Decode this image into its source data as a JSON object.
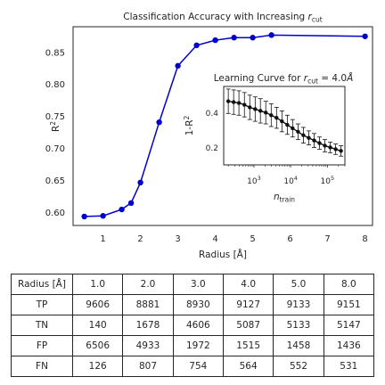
{
  "chart_data": [
    {
      "type": "line",
      "title": "Classification Accuracy with Increasing r_cut",
      "title_text": "Classification Accuracy with Increasing ",
      "title_symbol": "r",
      "title_subscript": "cut",
      "xlabel": "Radius [Å]",
      "ylabel": "R²",
      "ylabel_base": "R",
      "ylabel_sup": "2",
      "xlim": [
        0.2,
        8.2
      ],
      "ylim": [
        0.58,
        0.89
      ],
      "xticks": [
        1,
        2,
        3,
        4,
        5,
        6,
        7,
        8
      ],
      "yticks": [
        0.6,
        0.65,
        0.7,
        0.75,
        0.8,
        0.85
      ],
      "ytick_labels": [
        "0.60",
        "0.65",
        "0.70",
        "0.75",
        "0.80",
        "0.85"
      ],
      "grid": false,
      "color": "#0000cc",
      "series": [
        {
          "x": [
            0.5,
            1.0,
            1.5,
            1.75,
            2.0,
            2.5,
            3.0,
            3.5,
            4.0,
            4.5,
            5.0,
            5.5,
            8.0
          ],
          "y": [
            0.594,
            0.595,
            0.605,
            0.615,
            0.647,
            0.741,
            0.829,
            0.861,
            0.869,
            0.873,
            0.873,
            0.877,
            0.875
          ]
        }
      ]
    },
    {
      "type": "line",
      "title": "Learning Curve for r_cut = 4.0Å",
      "title_text": "Learning Curve for ",
      "title_symbol": "r",
      "title_subscript": "cut",
      "title_value": " = 4.0",
      "title_unit": "Å",
      "xlabel": "n_train",
      "xlabel_symbol": "n",
      "xlabel_subscript": "train",
      "ylabel": "1-R²",
      "ylabel_base": "1-R",
      "ylabel_sup": "2",
      "xscale": "log",
      "xlim": [
        150,
        300000
      ],
      "ylim": [
        0.1,
        0.55
      ],
      "xticks": [
        1000,
        10000,
        100000
      ],
      "xtick_bases": [
        "10",
        "10",
        "10"
      ],
      "xtick_exps": [
        "3",
        "4",
        "5"
      ],
      "yticks": [
        0.2,
        0.4
      ],
      "ytick_labels": [
        "0.2",
        "0.4"
      ],
      "color": "#111111",
      "series": [
        {
          "x": [
            200,
            280,
            390,
            550,
            770,
            1080,
            1500,
            2100,
            2950,
            4130,
            5780,
            8100,
            11300,
            15900,
            22200,
            31100,
            43600,
            61000,
            85500,
            120000,
            168000,
            235000
          ],
          "y": [
            0.465,
            0.46,
            0.455,
            0.445,
            0.43,
            0.42,
            0.41,
            0.4,
            0.385,
            0.37,
            0.35,
            0.33,
            0.31,
            0.29,
            0.27,
            0.255,
            0.24,
            0.225,
            0.21,
            0.2,
            0.19,
            0.18
          ],
          "err": [
            0.07,
            0.07,
            0.07,
            0.07,
            0.07,
            0.07,
            0.07,
            0.065,
            0.065,
            0.06,
            0.06,
            0.055,
            0.05,
            0.045,
            0.045,
            0.04,
            0.04,
            0.035,
            0.035,
            0.03,
            0.03,
            0.03
          ]
        }
      ]
    }
  ],
  "table": {
    "header": [
      "Radius [Å]",
      "1.0",
      "2.0",
      "3.0",
      "4.0",
      "5.0",
      "8.0"
    ],
    "rows": [
      {
        "label": "TP",
        "values": [
          "9606",
          "8881",
          "8930",
          "9127",
          "9133",
          "9151"
        ]
      },
      {
        "label": "TN",
        "values": [
          "140",
          "1678",
          "4606",
          "5087",
          "5133",
          "5147"
        ]
      },
      {
        "label": "FP",
        "values": [
          "6506",
          "4933",
          "1972",
          "1515",
          "1458",
          "1436"
        ]
      },
      {
        "label": "FN",
        "values": [
          "126",
          "807",
          "754",
          "564",
          "552",
          "531"
        ]
      }
    ]
  }
}
